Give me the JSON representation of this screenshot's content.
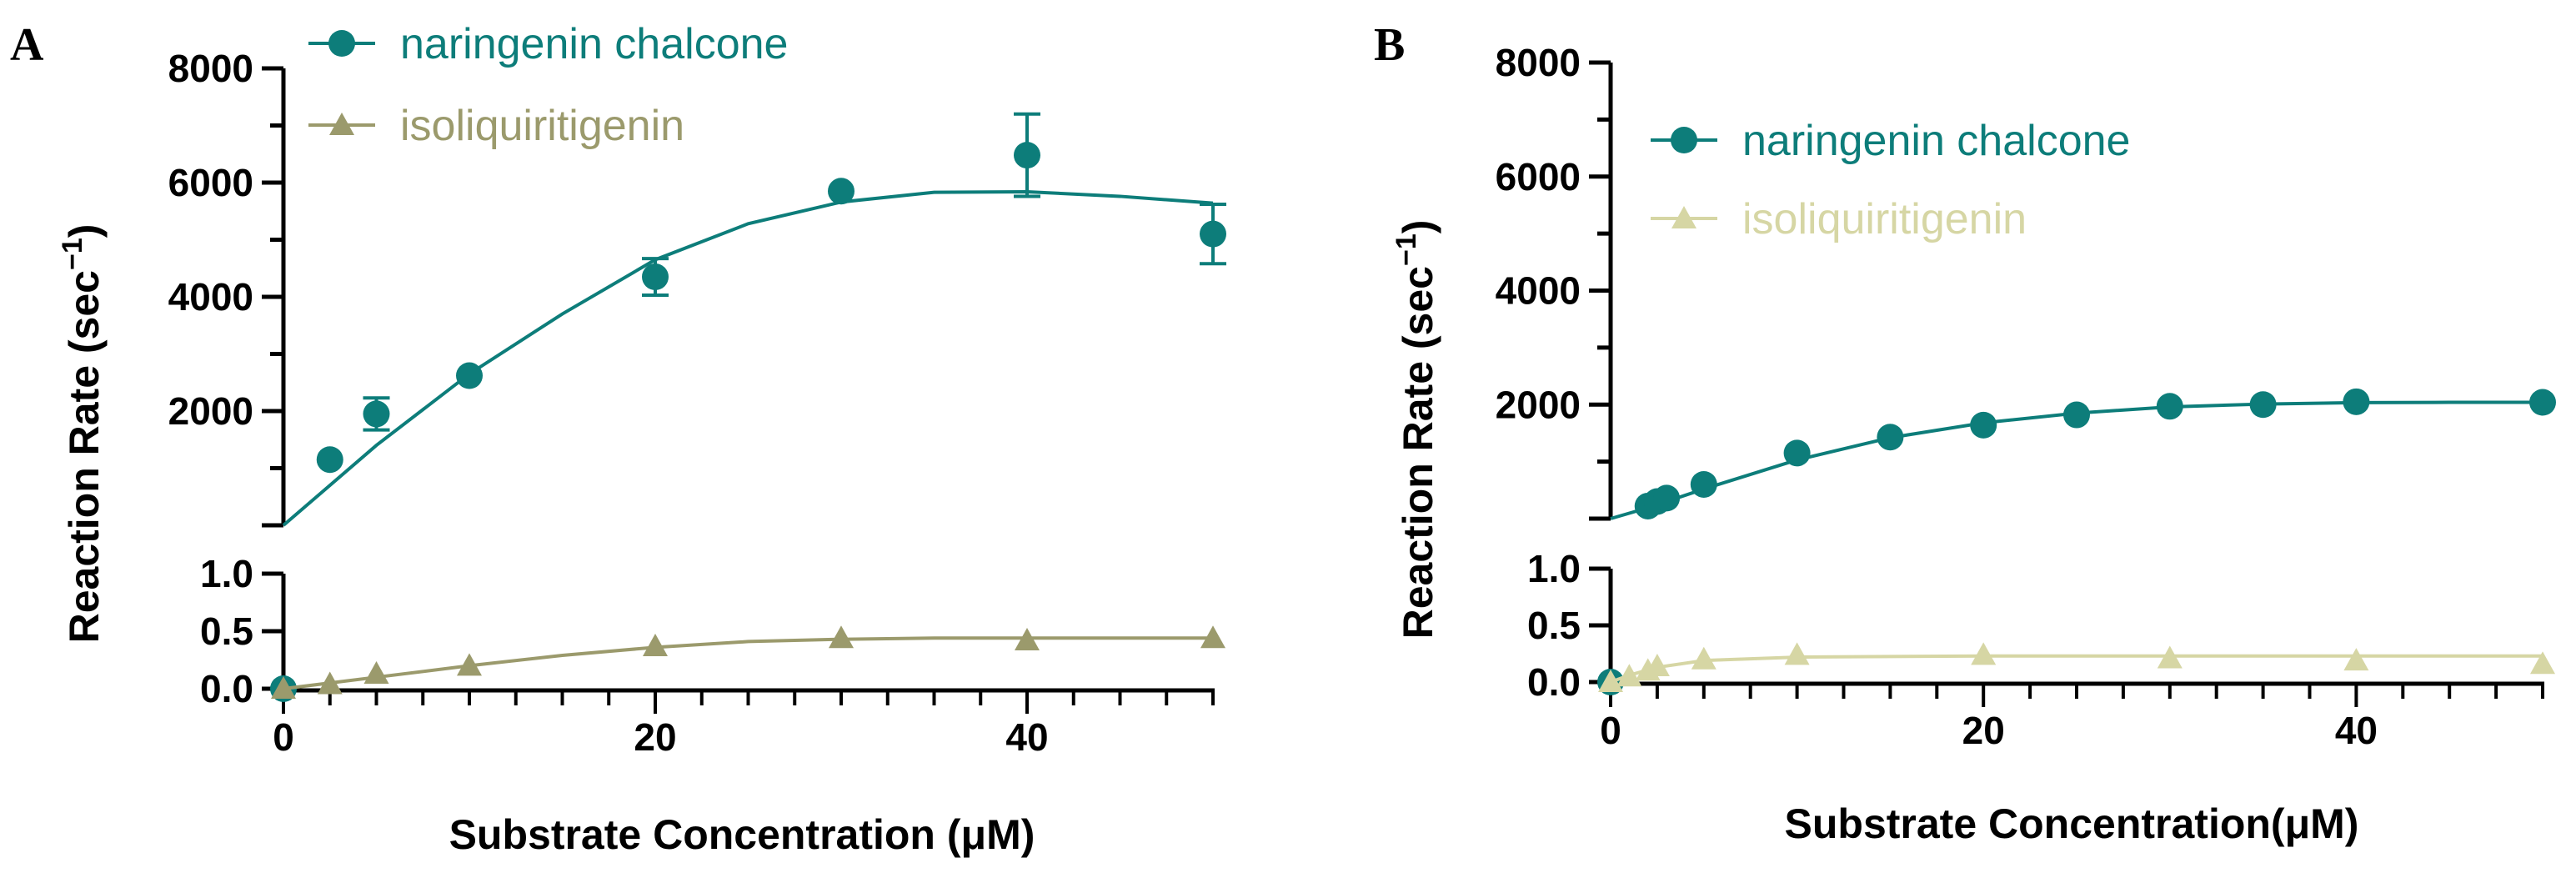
{
  "colors": {
    "naringenin_A": "#0d7d7a",
    "isoliquiritigenin_A": "#9b9a6c",
    "naringenin_B": "#0d7d7a",
    "isoliquiritigenin_B": "#d6d6a4",
    "axis": "#000000"
  },
  "chart_data": [
    {
      "panel": "A",
      "type": "scatter",
      "xlabel": "Substrate Concentration (μM)",
      "ylabel": "Reaction Rate (sec",
      "ylabel_superscript": "−1",
      "ylabel_close": ")",
      "xlim": [
        0,
        50
      ],
      "x_ticks": [
        "0",
        "20",
        "40"
      ],
      "upper_ylim": [
        0,
        8000
      ],
      "upper_y_ticks": [
        "2000",
        "4000",
        "6000",
        "8000"
      ],
      "lower_ylim": [
        0,
        1
      ],
      "lower_y_ticks": [
        "0.0",
        "0.5",
        "1.0"
      ],
      "legend_position": "top-left",
      "series": [
        {
          "name": "naringenin chalcone",
          "marker": "circle",
          "x": [
            0,
            2.5,
            5,
            10,
            20,
            30,
            40,
            50
          ],
          "y": [
            0,
            1150,
            1950,
            2620,
            4350,
            5850,
            6480,
            5100
          ],
          "err": [
            0,
            0,
            280,
            0,
            320,
            0,
            720,
            520
          ],
          "fit": [
            [
              0,
              0
            ],
            [
              5,
              1400
            ],
            [
              10,
              2650
            ],
            [
              15,
              3700
            ],
            [
              20,
              4650
            ],
            [
              25,
              5280
            ],
            [
              30,
              5660
            ],
            [
              35,
              5830
            ],
            [
              40,
              5840
            ],
            [
              45,
              5760
            ],
            [
              50,
              5640
            ]
          ]
        },
        {
          "name": "isoliquiritigenin",
          "marker": "triangle",
          "x": [
            0,
            2.5,
            5,
            10,
            20,
            30,
            40,
            50
          ],
          "y": [
            0,
            0.04,
            0.13,
            0.2,
            0.37,
            0.44,
            0.42,
            0.44
          ],
          "fit": [
            [
              0,
              0
            ],
            [
              5,
              0.1
            ],
            [
              10,
              0.2
            ],
            [
              15,
              0.29
            ],
            [
              20,
              0.36
            ],
            [
              25,
              0.41
            ],
            [
              30,
              0.43
            ],
            [
              35,
              0.44
            ],
            [
              40,
              0.44
            ],
            [
              45,
              0.44
            ],
            [
              50,
              0.44
            ]
          ]
        }
      ]
    },
    {
      "panel": "B",
      "type": "scatter",
      "xlabel": "Substrate Concentration(μM)",
      "ylabel": "Reaction Rate (sec",
      "ylabel_superscript": "−1",
      "ylabel_close": ")",
      "xlim": [
        0,
        50
      ],
      "x_ticks": [
        "0",
        "20",
        "40"
      ],
      "upper_ylim": [
        0,
        8000
      ],
      "upper_y_ticks": [
        "2000",
        "4000",
        "6000",
        "8000"
      ],
      "lower_ylim": [
        0,
        1
      ],
      "lower_y_ticks": [
        "0.0",
        "0.5",
        "1.0"
      ],
      "legend_position": "top-left",
      "series": [
        {
          "name": "naringenin chalcone",
          "marker": "circle",
          "x": [
            0,
            2,
            2.5,
            3,
            5,
            10,
            15,
            20,
            25,
            30,
            35,
            40,
            50
          ],
          "y": [
            0,
            220,
            300,
            360,
            600,
            1150,
            1430,
            1640,
            1820,
            1970,
            2000,
            2050,
            2040
          ],
          "fit": [
            [
              0,
              0
            ],
            [
              2,
              190
            ],
            [
              5,
              520
            ],
            [
              10,
              1030
            ],
            [
              15,
              1420
            ],
            [
              20,
              1680
            ],
            [
              25,
              1850
            ],
            [
              30,
              1960
            ],
            [
              35,
              2010
            ],
            [
              40,
              2035
            ],
            [
              45,
              2040
            ],
            [
              50,
              2040
            ]
          ]
        },
        {
          "name": "isoliquiritigenin",
          "marker": "triangle",
          "x": [
            0,
            1,
            2,
            2.5,
            5,
            10,
            20,
            30,
            40,
            50
          ],
          "y": [
            0,
            0.05,
            0.1,
            0.14,
            0.2,
            0.24,
            0.24,
            0.21,
            0.19,
            0.16
          ],
          "fit": [
            [
              0,
              0
            ],
            [
              1,
              0.06
            ],
            [
              2.5,
              0.13
            ],
            [
              5,
              0.19
            ],
            [
              10,
              0.22
            ],
            [
              20,
              0.23
            ],
            [
              30,
              0.23
            ],
            [
              40,
              0.23
            ],
            [
              50,
              0.23
            ]
          ]
        }
      ]
    }
  ]
}
